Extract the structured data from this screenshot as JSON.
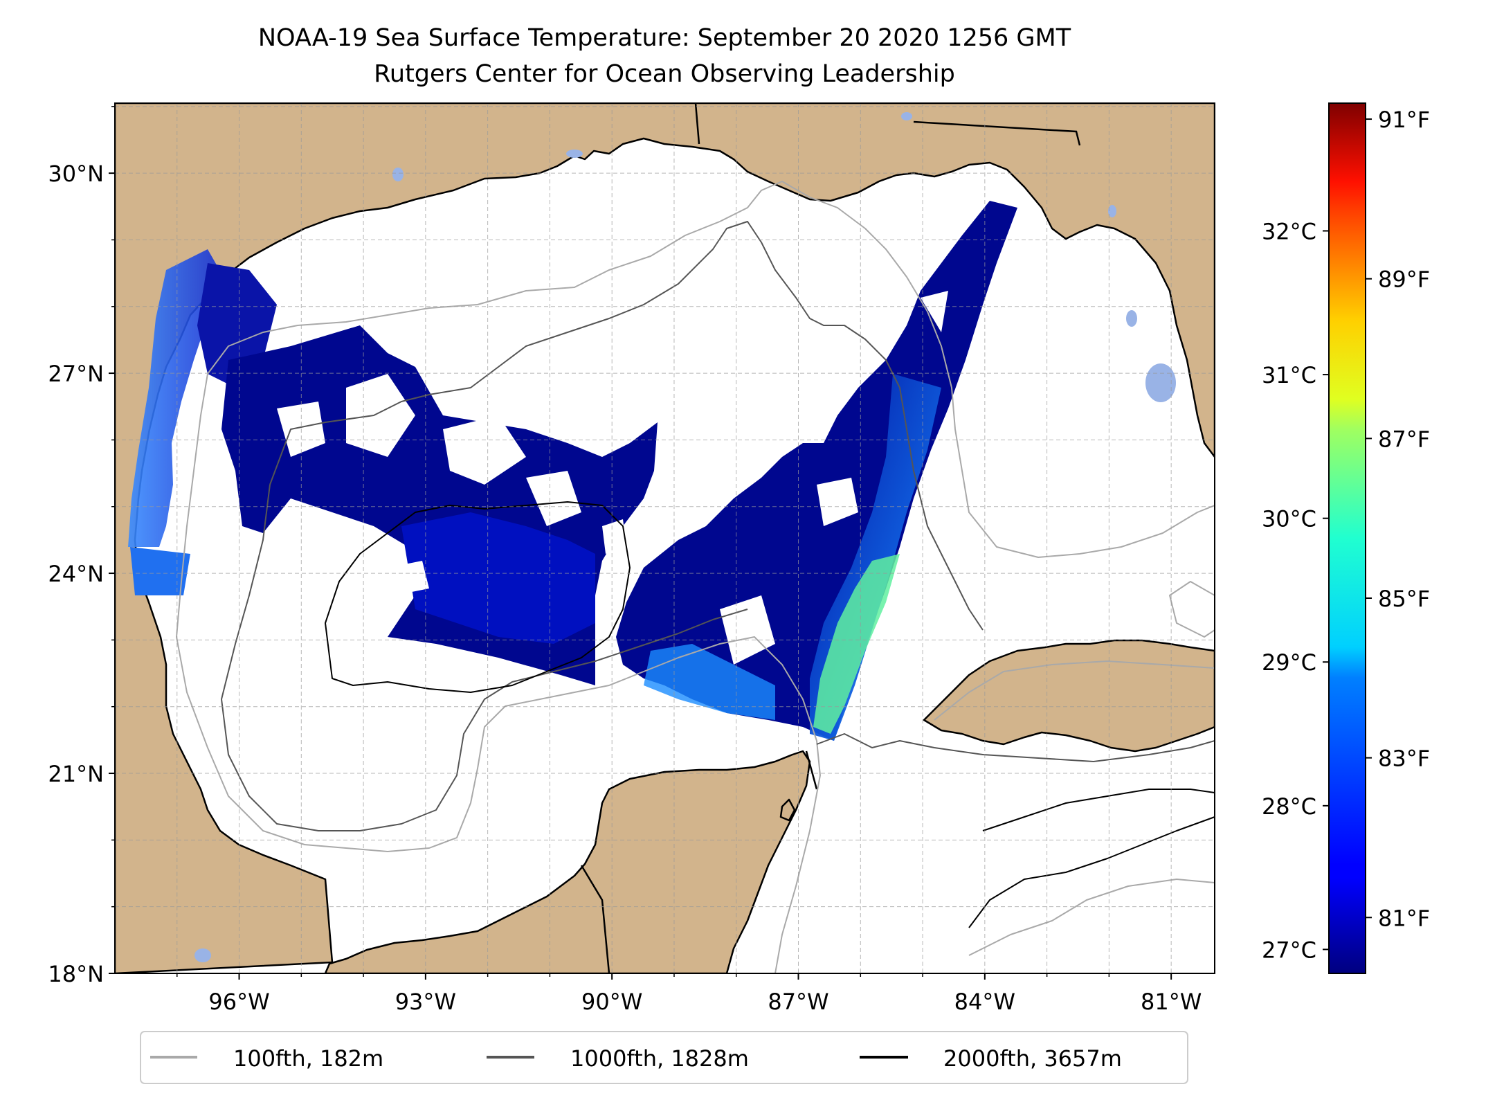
{
  "title": {
    "line1": "NOAA-19 Sea Surface Temperature: September 20 2020 1256 GMT",
    "line2": "Rutgers Center for Ocean Observing Leadership"
  },
  "map": {
    "lon_range": [
      -98.0,
      -80.3
    ],
    "lat_range": [
      18.0,
      31.05
    ],
    "lat_ticks": [
      {
        "value": 30,
        "label": "30°N"
      },
      {
        "value": 27,
        "label": "27°N"
      },
      {
        "value": 24,
        "label": "24°N"
      },
      {
        "value": 21,
        "label": "21°N"
      },
      {
        "value": 18,
        "label": "18°N"
      }
    ],
    "lon_ticks": [
      {
        "value": -96,
        "label": "96°W"
      },
      {
        "value": -93,
        "label": "93°W"
      },
      {
        "value": -90,
        "label": "90°W"
      },
      {
        "value": -87,
        "label": "87°W"
      },
      {
        "value": -84,
        "label": "84°W"
      },
      {
        "value": -81,
        "label": "81°W"
      }
    ],
    "colors": {
      "land": "#d2b48c",
      "water_lakes": "#99b3e6",
      "contour_100fth": "#a9a9a9",
      "contour_1000fth": "#555555",
      "contour_2000fth": "#000000"
    }
  },
  "colorbar": {
    "celsius_ticks": [
      {
        "value": 32,
        "label": "32°C"
      },
      {
        "value": 31,
        "label": "31°C"
      },
      {
        "value": 30,
        "label": "30°C"
      },
      {
        "value": 29,
        "label": "29°C"
      },
      {
        "value": 28,
        "label": "28°C"
      },
      {
        "value": 27,
        "label": "27°C"
      }
    ],
    "fahrenheit_ticks": [
      {
        "value": 91,
        "label": "91°F"
      },
      {
        "value": 89,
        "label": "89°F"
      },
      {
        "value": 87,
        "label": "87°F"
      },
      {
        "value": 85,
        "label": "85°F"
      },
      {
        "value": 83,
        "label": "83°F"
      },
      {
        "value": 81,
        "label": "81°F"
      }
    ],
    "range_f": [
      80.3,
      91.2
    ]
  },
  "legend": {
    "entries": [
      {
        "label": "100fth, 182m",
        "color": "#a9a9a9"
      },
      {
        "label": "1000fth, 1828m",
        "color": "#555555"
      },
      {
        "label": "2000fth, 3657m",
        "color": "#000000"
      }
    ]
  }
}
